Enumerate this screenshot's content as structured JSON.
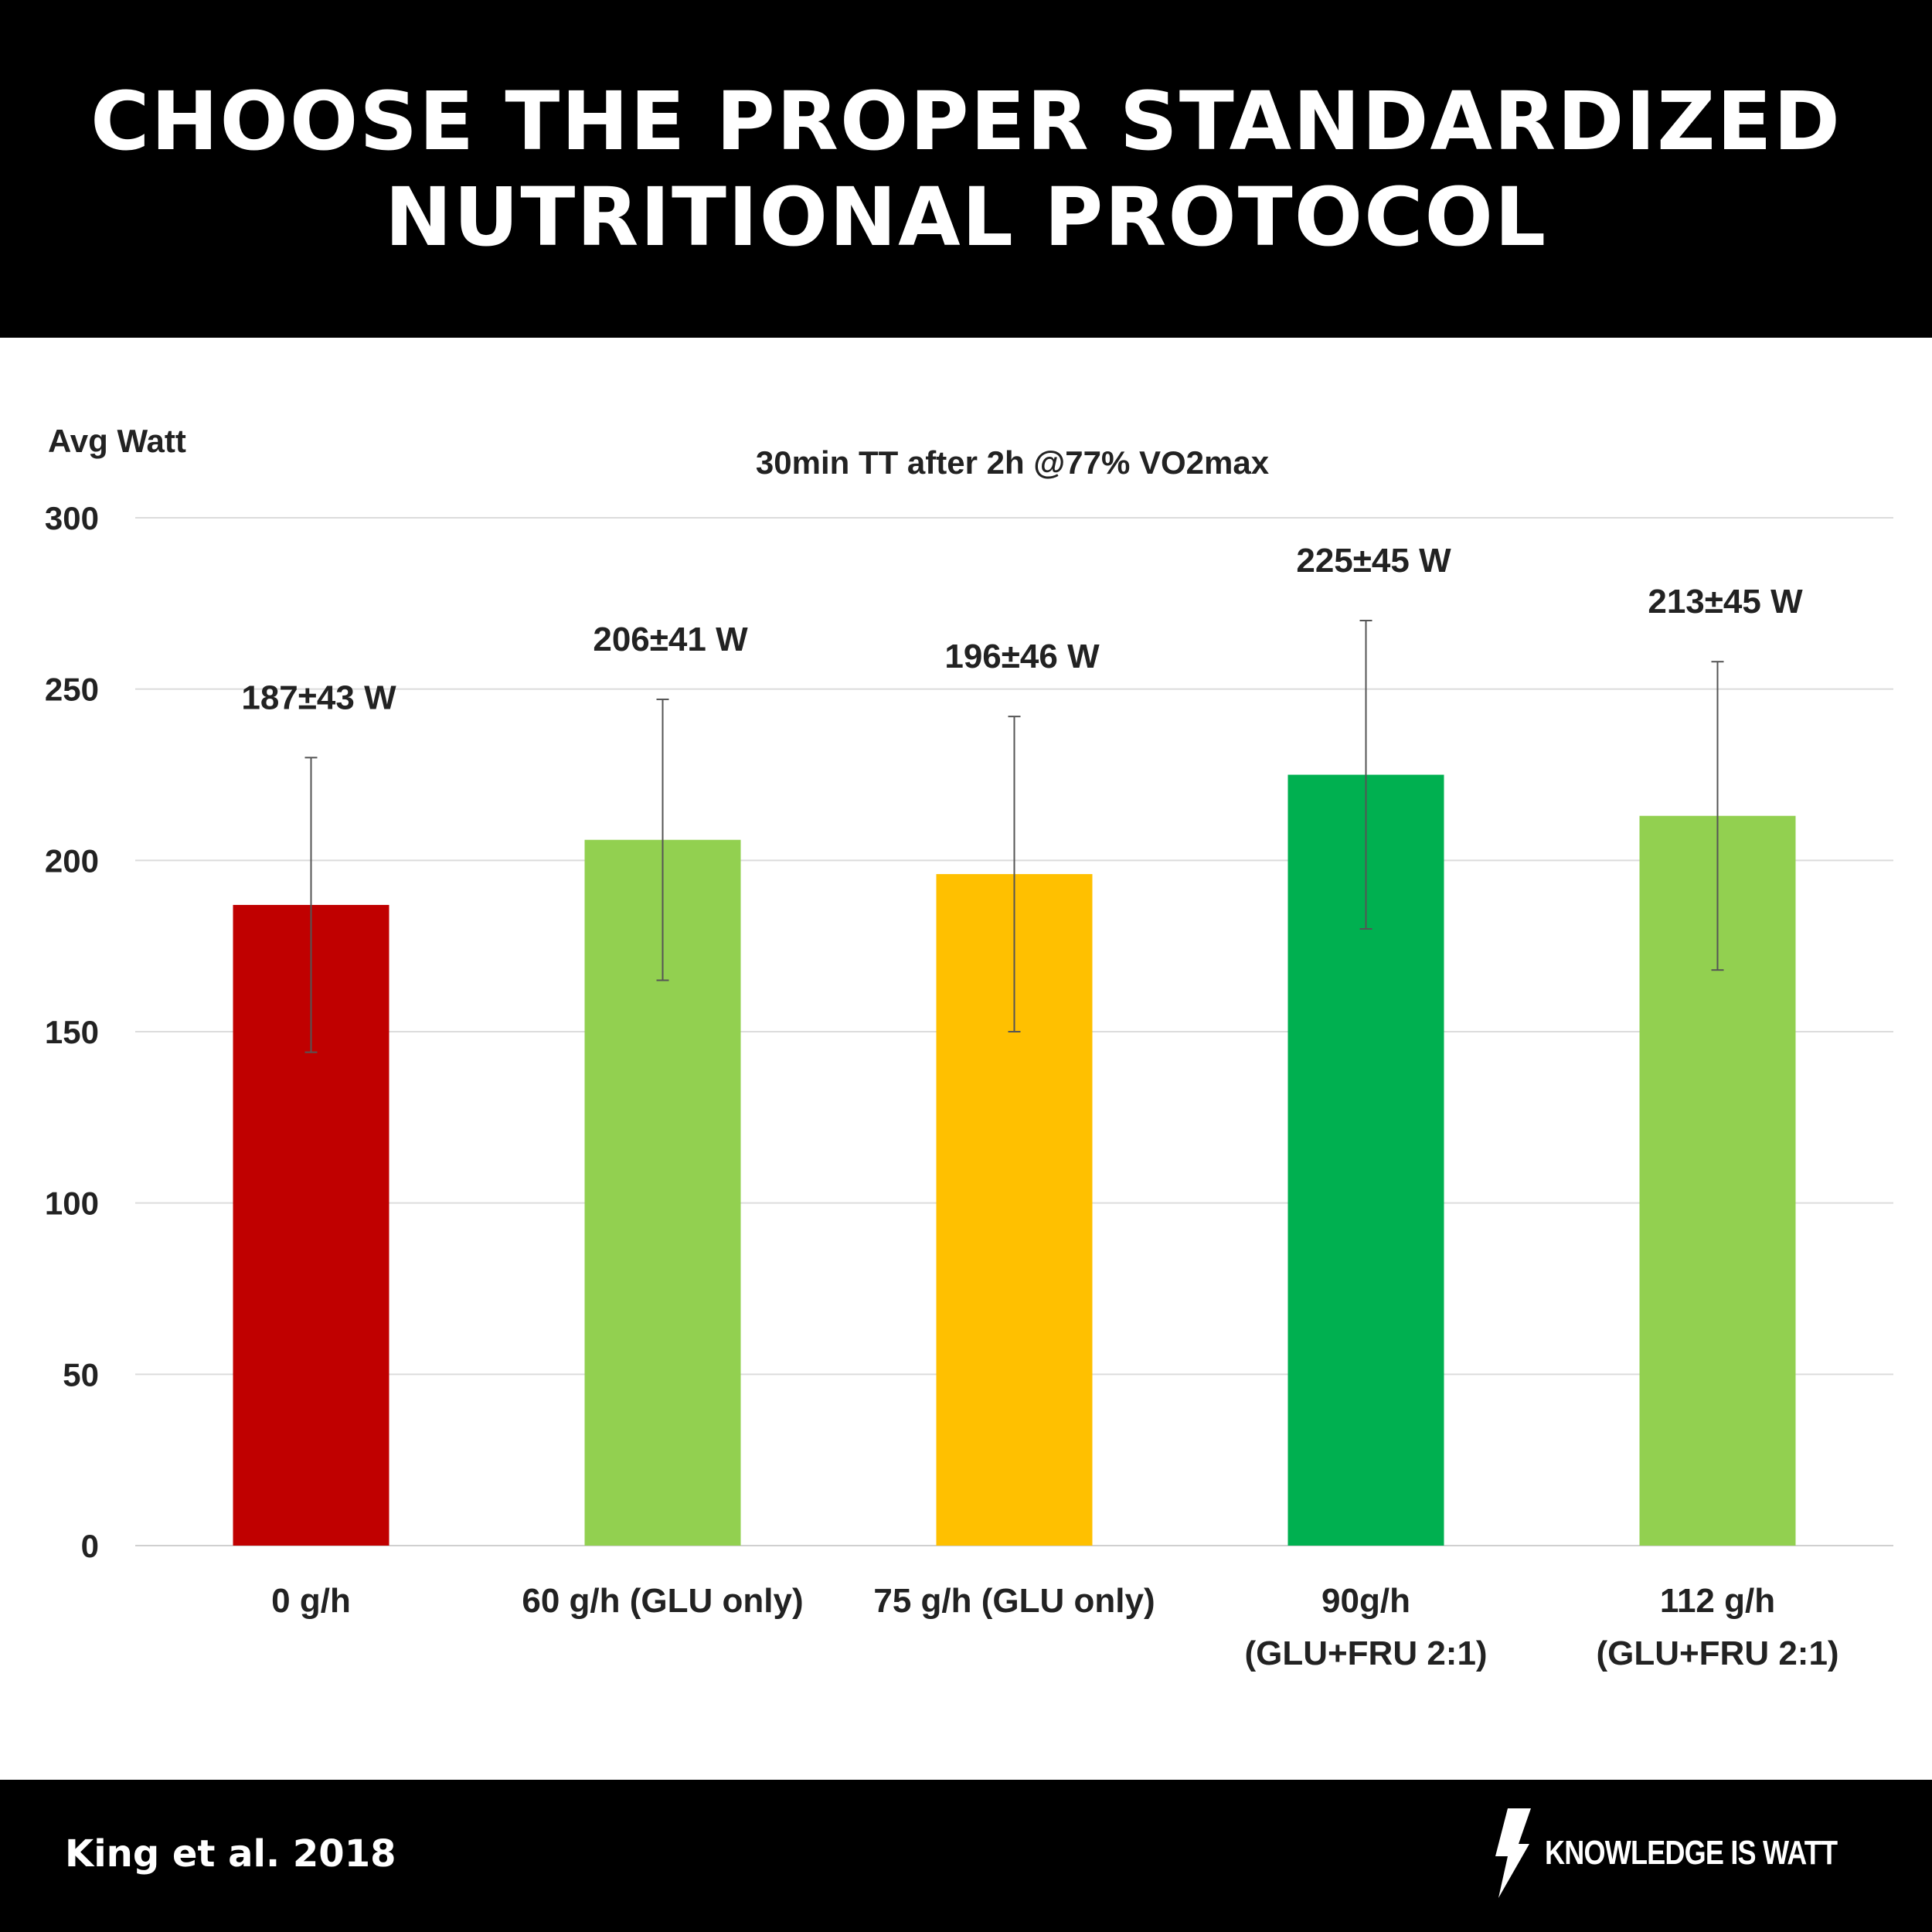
{
  "header": {
    "line1": "CHOOSE THE PROPER STANDARDIZED",
    "line2": "NUTRITIONAL PROTOCOL"
  },
  "chart_data": {
    "type": "bar",
    "title": "30min TT after 2h @77% VO2max",
    "ylabel": "Avg Watt",
    "xlabel": "",
    "ylim": [
      0,
      300
    ],
    "yticks": [
      0,
      50,
      100,
      150,
      200,
      250,
      300
    ],
    "grid": true,
    "categories": [
      [
        "0 g/h"
      ],
      [
        "60 g/h (GLU only)"
      ],
      [
        "75 g/h (GLU only)"
      ],
      [
        "90g/h",
        "(GLU+FRU 2:1)"
      ],
      [
        "112 g/h",
        "(GLU+FRU 2:1)"
      ]
    ],
    "values": [
      187,
      206,
      196,
      225,
      213
    ],
    "errors": [
      43,
      41,
      46,
      45,
      45
    ],
    "data_labels": [
      "187±43 W",
      "206±41 W",
      "196±46 W",
      "225±45 W",
      "213±45 W"
    ],
    "colors": [
      "#c00000",
      "#92d050",
      "#ffc000",
      "#00b050",
      "#92d050"
    ]
  },
  "footer": {
    "citation": "King et al. 2018",
    "brand": "KNOWLEDGE IS WATT",
    "brand_icon": "lightning-bolt-icon"
  }
}
